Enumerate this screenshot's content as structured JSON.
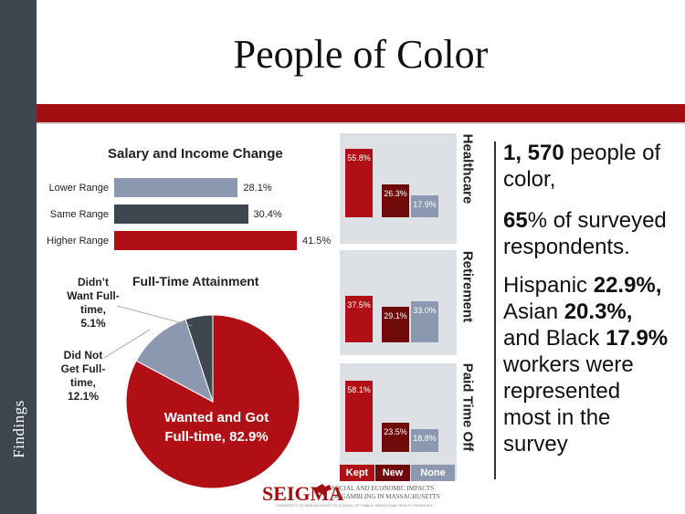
{
  "slide": {
    "title": "People of Color",
    "side_label": "Findings",
    "colors": {
      "sidebar": "#3e4650",
      "accent": "#a20f10",
      "kept": "#b01015",
      "new": "#6f0a0a",
      "none": "#8c98b0",
      "slate": "#3e4650"
    }
  },
  "chart_data": [
    {
      "type": "bar",
      "orientation": "horizontal",
      "title": "Salary and Income Change",
      "categories": [
        "Lower Range",
        "Same Range",
        "Higher Range"
      ],
      "values": [
        28.1,
        30.4,
        41.5
      ],
      "value_labels": [
        "28.1%",
        "30.4%",
        "41.5%"
      ],
      "colors": [
        "#8c98b0",
        "#3e4650",
        "#b01015"
      ]
    },
    {
      "type": "pie",
      "title": "Full-Time Attainment",
      "slices": [
        {
          "label_lines": [
            "Wanted and Got",
            "Full-time, 82.9%"
          ],
          "value": 82.9,
          "color": "#b01015"
        },
        {
          "label_lines": [
            "Did Not",
            "Get Full-",
            "time,",
            "12.1%"
          ],
          "value": 12.1,
          "color": "#8c98b0"
        },
        {
          "label_lines": [
            "Didn’t",
            "Want Full-",
            "time,",
            "5.1%"
          ],
          "value": 5.1,
          "color": "#3e4650"
        }
      ]
    },
    {
      "type": "bar",
      "title": "Healthcare",
      "categories": [
        "Kept",
        "New",
        "None"
      ],
      "values": [
        55.8,
        26.3,
        17.9
      ],
      "value_labels": [
        "55.8%",
        "26.3%",
        "17.9%"
      ]
    },
    {
      "type": "bar",
      "title": "Retirement",
      "categories": [
        "Kept",
        "New",
        "None"
      ],
      "values": [
        37.5,
        29.1,
        33.0
      ],
      "value_labels": [
        "37.5%",
        "29.1%",
        "33.0%"
      ]
    },
    {
      "type": "bar",
      "title": "Paid Time Off",
      "categories": [
        "Kept",
        "New",
        "None"
      ],
      "values": [
        58.1,
        23.5,
        18.8
      ],
      "value_labels": [
        "58.1%",
        "23.5%",
        "18.8%"
      ]
    }
  ],
  "legend": {
    "kept": "Kept",
    "new": "New",
    "none": "None"
  },
  "summary": {
    "p1": {
      "num": "1, 570",
      "rest1": " people of",
      "rest2": "color,"
    },
    "p2": {
      "num": "65",
      "rest1": "% of surveyed",
      "rest2": "respondents."
    },
    "p3": {
      "l1_pre": "Hispanic ",
      "l1_num": "22.9%,",
      "l2_pre": "Asian ",
      "l2_num": "20.3%,",
      "l3_pre": "and Black ",
      "l3_num": "17.9%",
      "l4": "workers were",
      "l5": "represented",
      "l6": "most in the",
      "l7": "survey"
    }
  },
  "logo": {
    "word": "SEIGMA",
    "sub1": "SOCIAL AND ECONOMIC IMPACTS",
    "sub2": "OF GAMBLING IN MASSACHUSETTS",
    "small": "UNIVERSITY OF MASSACHUSETTS SCHOOL OF PUBLIC HEALTH AND HEALTH SCIENCES"
  }
}
